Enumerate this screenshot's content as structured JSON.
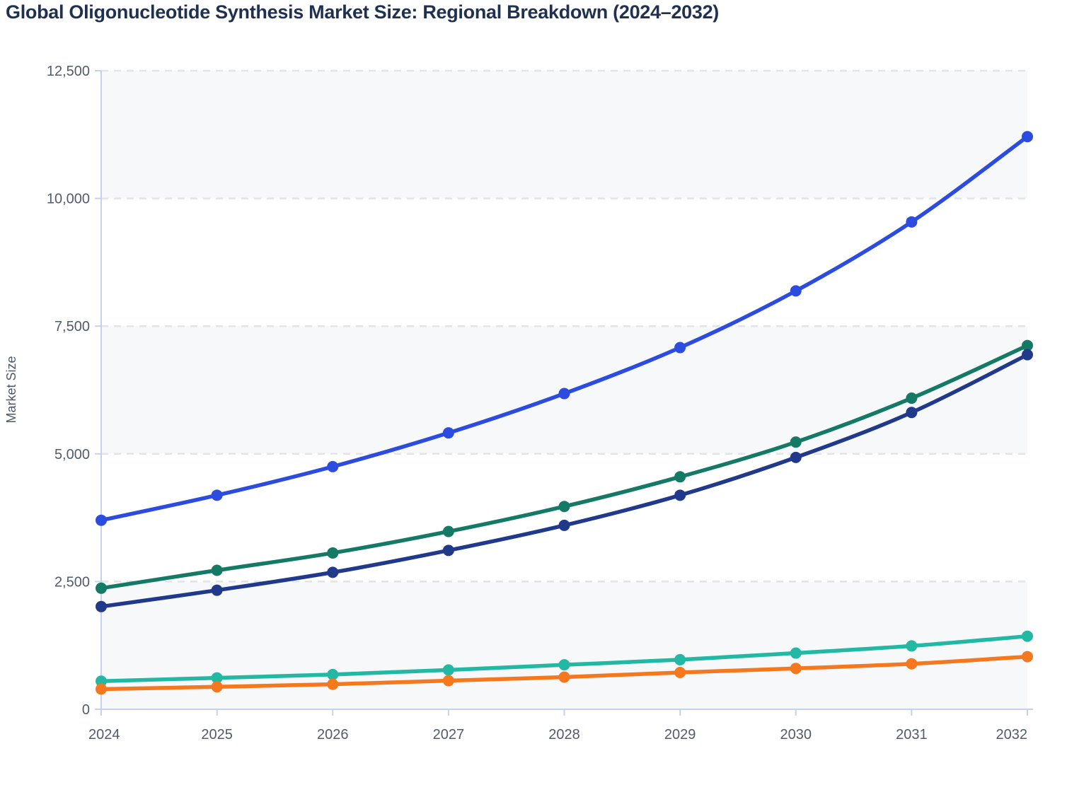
{
  "page": {
    "title": "Global Oligonucleotide Synthesis Market Size: Regional Breakdown (2024–2032)"
  },
  "chart_data": {
    "type": "line",
    "title": "Global Oligonucleotide Synthesis Market Size: Regional Breakdown (2024–2032)",
    "xlabel": "",
    "ylabel": "Market Size",
    "categories": [
      "2024",
      "2025",
      "2026",
      "2027",
      "2028",
      "2029",
      "2030",
      "2031",
      "2032"
    ],
    "ylim": [
      0,
      12500
    ],
    "y_ticks": [
      0,
      2500,
      5000,
      7500,
      10000,
      12500
    ],
    "y_tick_labels": [
      "0",
      "2,500",
      "5,000",
      "7,500",
      "10,000",
      "12,500"
    ],
    "grid": "horizontal-dashed",
    "legend_position": "none",
    "shaded_bands": [
      [
        0,
        2500
      ],
      [
        5000,
        7500
      ],
      [
        10000,
        12500
      ]
    ],
    "series": [
      {
        "name": "Series 1 (blue)",
        "color": "#2c4bdf",
        "values": [
          3700,
          4190,
          4750,
          5410,
          6180,
          7080,
          8190,
          9540,
          11210
        ]
      },
      {
        "name": "Series 2 (teal-green)",
        "color": "#147a66",
        "values": [
          2370,
          2720,
          3060,
          3480,
          3970,
          4550,
          5230,
          6090,
          7120
        ]
      },
      {
        "name": "Series 3 (navy)",
        "color": "#20398b",
        "values": [
          2010,
          2330,
          2680,
          3110,
          3600,
          4190,
          4930,
          5810,
          6940
        ]
      },
      {
        "name": "Series 4 (turquoise)",
        "color": "#22b8a3",
        "values": [
          550,
          615,
          680,
          770,
          870,
          970,
          1100,
          1240,
          1430
        ]
      },
      {
        "name": "Series 5 (orange)",
        "color": "#f5771e",
        "values": [
          395,
          440,
          490,
          560,
          630,
          720,
          800,
          890,
          1030
        ]
      }
    ],
    "style": {
      "band_fill": "#f6f8fa",
      "grid_color": "#e1e4e8",
      "axis_color": "#c7d0ee",
      "tick_text_color": "#515b6b",
      "title_color": "#1f3050",
      "line_width": 5.5,
      "marker_radius": 8
    }
  }
}
